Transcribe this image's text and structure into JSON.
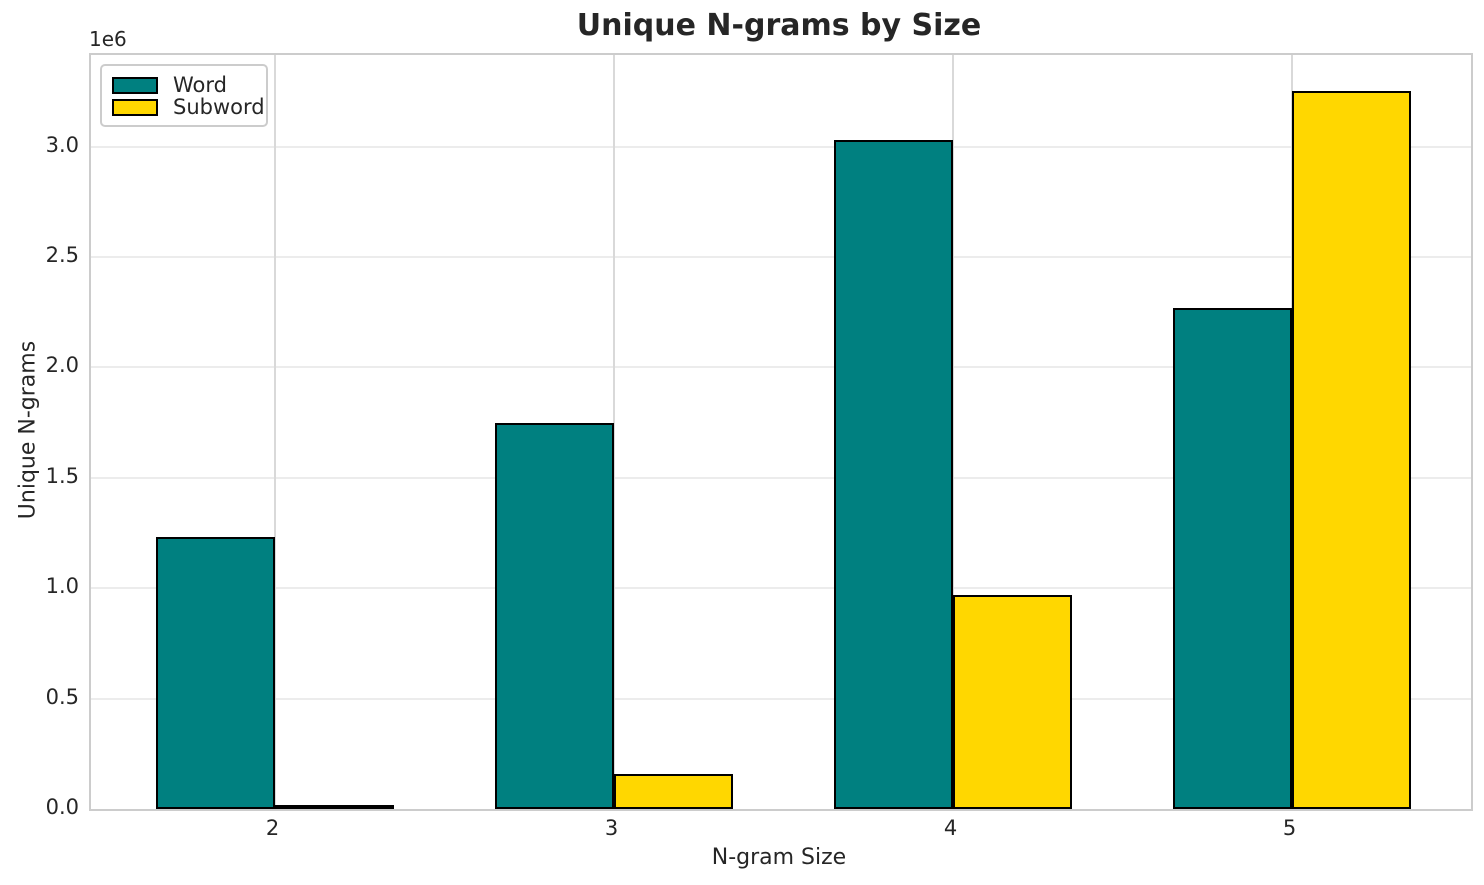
{
  "chart_data": {
    "type": "bar",
    "title": "Unique N-grams by Size",
    "xlabel": "N-gram Size",
    "ylabel": "Unique N-grams",
    "y_offset_label": "1e6",
    "categories": [
      "2",
      "3",
      "4",
      "5"
    ],
    "series": [
      {
        "name": "Word",
        "color": "#008080",
        "values": [
          1230000,
          1750000,
          3030000,
          2270000
        ]
      },
      {
        "name": "Subword",
        "color": "#FFD700",
        "values": [
          20000,
          160000,
          970000,
          3250000
        ]
      }
    ],
    "bar_edge_color": "#000000",
    "y_ticks": [
      {
        "value": 0,
        "label": "0.0"
      },
      {
        "value": 500000,
        "label": "0.5"
      },
      {
        "value": 1000000,
        "label": "1.0"
      },
      {
        "value": 1500000,
        "label": "1.5"
      },
      {
        "value": 2000000,
        "label": "2.0"
      },
      {
        "value": 2500000,
        "label": "2.5"
      },
      {
        "value": 3000000,
        "label": "3.0"
      }
    ],
    "ylim": [
      0,
      3415000
    ],
    "grid": true,
    "legend_position": "upper left"
  }
}
